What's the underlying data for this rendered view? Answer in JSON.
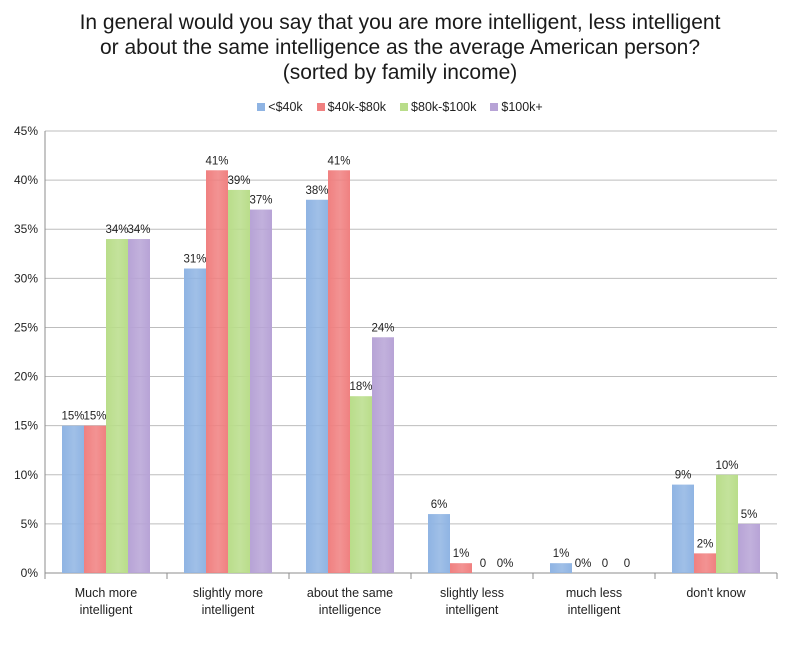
{
  "chart_data": {
    "type": "bar",
    "title_lines": [
      "In general would you say that you are more intelligent, less intelligent",
      "or about the same intelligence as the average American person?",
      "(sorted by family income)"
    ],
    "categories": [
      [
        "Much more",
        "intelligent"
      ],
      [
        "slightly more",
        "intelligent"
      ],
      [
        "about the same",
        "intelligence"
      ],
      [
        "slightly less",
        "intelligent"
      ],
      [
        "much less",
        "intelligent"
      ],
      [
        "don't know"
      ]
    ],
    "series": [
      {
        "name": "<$40k",
        "color": "#8fb4e3",
        "values": [
          15,
          31,
          38,
          6,
          1,
          9
        ],
        "labels": [
          "15%",
          "31%",
          "38%",
          "6%",
          "1%",
          "9%"
        ]
      },
      {
        "name": "$40k-$80k",
        "color": "#f08080",
        "values": [
          15,
          41,
          41,
          1,
          0,
          2
        ],
        "labels": [
          "15%",
          "41%",
          "41%",
          "1%",
          "0%",
          "2%"
        ]
      },
      {
        "name": "$80k-$100k",
        "color": "#b9dd8a",
        "values": [
          34,
          39,
          18,
          0,
          0,
          10
        ],
        "labels": [
          "34%",
          "39%",
          "18%",
          "0",
          "0",
          "10%"
        ]
      },
      {
        "name": "$100k+",
        "color": "#b7a3d6",
        "values": [
          34,
          37,
          24,
          0,
          0,
          5
        ],
        "labels": [
          "34%",
          "37%",
          "24%",
          "0%",
          "0",
          "5%"
        ]
      }
    ],
    "y_ticks": [
      "0%",
      "5%",
      "10%",
      "15%",
      "20%",
      "25%",
      "30%",
      "35%",
      "40%",
      "45%"
    ],
    "ylim": [
      0,
      45
    ],
    "grid": true,
    "legend_position": "top"
  }
}
